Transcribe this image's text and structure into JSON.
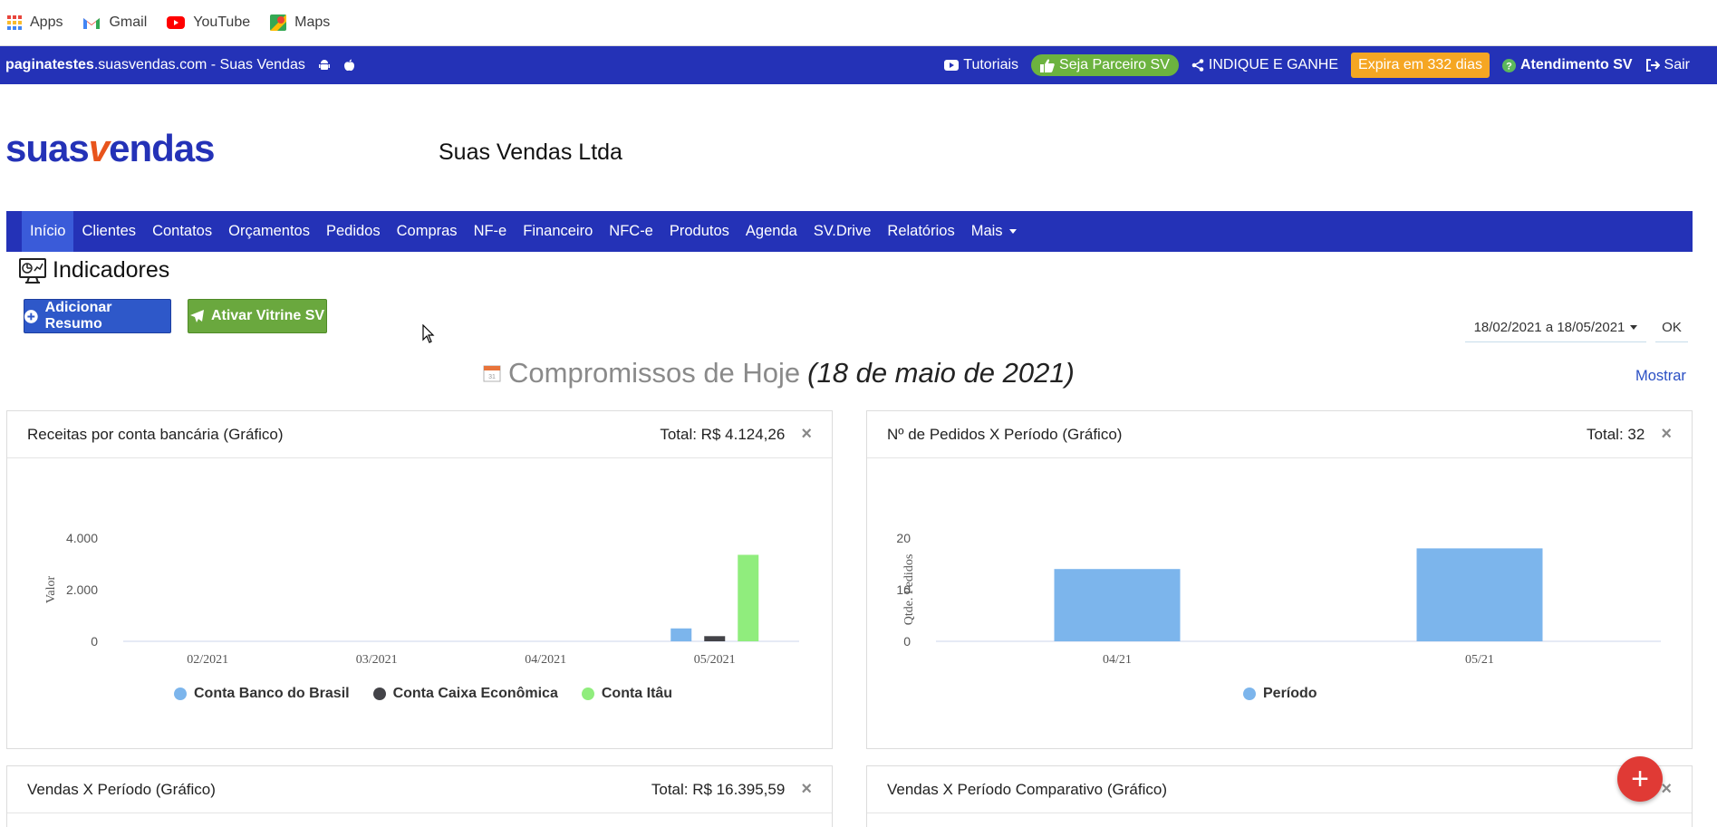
{
  "bookmarks": [
    {
      "label": "Apps",
      "icon": "apps-grid-icon"
    },
    {
      "label": "Gmail",
      "icon": "gmail-icon"
    },
    {
      "label": "YouTube",
      "icon": "youtube-icon"
    },
    {
      "label": "Maps",
      "icon": "maps-icon"
    }
  ],
  "topbar": {
    "host_bold": "paginatestes",
    "host_rest": ".suasvendas.com - Suas Vendas",
    "tutoriais": "Tutoriais",
    "parceiro": "Seja Parceiro SV",
    "indique": "INDIQUE E GANHE",
    "expira": "Expira em 332 dias",
    "atendimento": "Atendimento SV",
    "sair": "Sair"
  },
  "header": {
    "logo_part1": "suas",
    "logo_v": "v",
    "logo_part2": "endas",
    "company": "Suas Vendas Ltda"
  },
  "nav": [
    "Início",
    "Clientes",
    "Contatos",
    "Orçamentos",
    "Pedidos",
    "Compras",
    "NF-e",
    "Financeiro",
    "NFC-e",
    "Produtos",
    "Agenda",
    "SV.Drive",
    "Relatórios",
    "Mais"
  ],
  "page": {
    "title": "Indicadores",
    "add_resumo": "Adicionar Resumo",
    "ativar_vitrine": "Ativar Vitrine SV",
    "date_range": "18/02/2021 a 18/05/2021",
    "ok": "OK",
    "compromissos_label": "Compromissos de Hoje",
    "compromissos_date": "(18 de maio de 2021)",
    "mostrar": "Mostrar"
  },
  "cards": [
    {
      "title": "Receitas por conta bancária (Gráfico)",
      "total": "Total: R$ 4.124,26",
      "close": "×"
    },
    {
      "title": "Nº de Pedidos X Período (Gráfico)",
      "total": "Total: 32",
      "close": "×"
    },
    {
      "title": "Vendas X Período (Gráfico)",
      "total": "Total: R$ 16.395,59",
      "close": "×"
    },
    {
      "title": "Vendas X Período Comparativo (Gráfico)",
      "total": "",
      "close": "×"
    }
  ],
  "colors": {
    "primary": "#2432b7",
    "series_blue": "#7cb5ec",
    "series_dark": "#434348",
    "series_green": "#90ed7d",
    "orange": "#f5a623",
    "fab": "#e03a35"
  },
  "fab_label": "+",
  "chart_data": [
    {
      "type": "bar",
      "categories": [
        "02/2021",
        "03/2021",
        "04/2021",
        "05/2021"
      ],
      "ylabel": "Valor",
      "ylim": [
        0,
        4000
      ],
      "yticks": [
        "0",
        "2.000",
        "4.000"
      ],
      "series": [
        {
          "name": "Conta Banco do Brasil",
          "values": [
            0,
            0,
            0,
            500
          ]
        },
        {
          "name": "Conta Caixa Econômica",
          "values": [
            0,
            0,
            0,
            200
          ]
        },
        {
          "name": "Conta Itâu",
          "values": [
            0,
            0,
            0,
            3350
          ]
        }
      ]
    },
    {
      "type": "bar",
      "categories": [
        "04/21",
        "05/21"
      ],
      "ylabel": "Qtde. Pedidos",
      "ylim": [
        0,
        20
      ],
      "yticks": [
        "0",
        "10",
        "20"
      ],
      "series": [
        {
          "name": "Período",
          "values": [
            14,
            18
          ]
        }
      ]
    }
  ]
}
